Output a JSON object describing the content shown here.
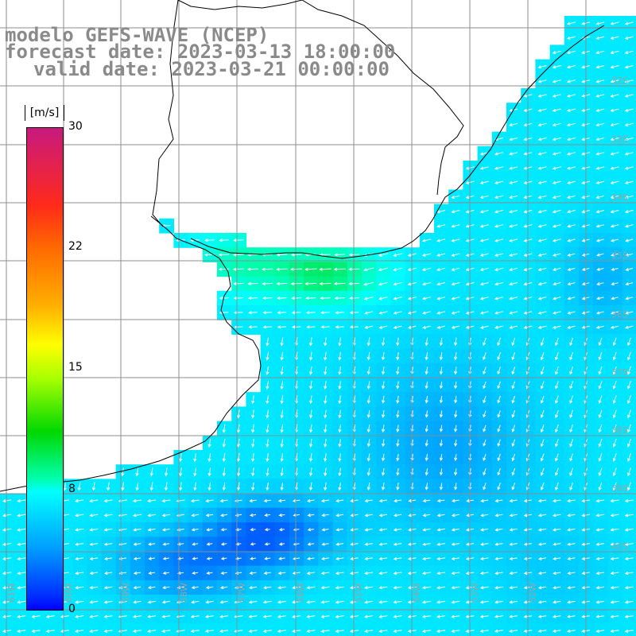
{
  "title": {
    "line1": "modelo GEFS-WAVE (NCEP)",
    "line2": "forecast date: 2023-03-13 18:00:00",
    "line3": "valid date: 2023-03-21 00:00:00"
  },
  "colorbar": {
    "unit": "[m/s]",
    "labels": [
      "30",
      "22",
      "15",
      "8",
      "0"
    ],
    "values": [
      30,
      22,
      15,
      8,
      0
    ]
  },
  "lat_labels": [
    "32S",
    "33S",
    "34S",
    "35S",
    "36S",
    "37S",
    "38S",
    "39S",
    "40S"
  ],
  "lon_labels": [
    "61W",
    "60W",
    "59W",
    "58W",
    "57W",
    "56W",
    "55W",
    "54W",
    "53W",
    "52W"
  ],
  "colors": {
    "land": "#ffffff",
    "coast": "#000000",
    "grid": "#8c8c8c",
    "arrow": "#ffffff",
    "title_text": "#8a8a8a"
  }
}
